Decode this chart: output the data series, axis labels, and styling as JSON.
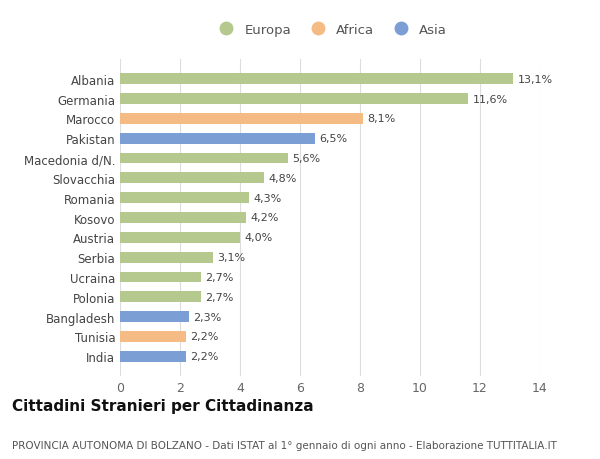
{
  "categories": [
    "Albania",
    "Germania",
    "Marocco",
    "Pakistan",
    "Macedonia d/N.",
    "Slovacchia",
    "Romania",
    "Kosovo",
    "Austria",
    "Serbia",
    "Ucraina",
    "Polonia",
    "Bangladesh",
    "Tunisia",
    "India"
  ],
  "values": [
    13.1,
    11.6,
    8.1,
    6.5,
    5.6,
    4.8,
    4.3,
    4.2,
    4.0,
    3.1,
    2.7,
    2.7,
    2.3,
    2.2,
    2.2
  ],
  "labels": [
    "13,1%",
    "11,6%",
    "8,1%",
    "6,5%",
    "5,6%",
    "4,8%",
    "4,3%",
    "4,2%",
    "4,0%",
    "3,1%",
    "2,7%",
    "2,7%",
    "2,3%",
    "2,2%",
    "2,2%"
  ],
  "continents": [
    "Europa",
    "Europa",
    "Africa",
    "Asia",
    "Europa",
    "Europa",
    "Europa",
    "Europa",
    "Europa",
    "Europa",
    "Europa",
    "Europa",
    "Asia",
    "Africa",
    "Asia"
  ],
  "colors": {
    "Europa": "#b5c98e",
    "Africa": "#f5bb85",
    "Asia": "#7b9fd4"
  },
  "xlim": [
    0,
    14
  ],
  "xticks": [
    0,
    2,
    4,
    6,
    8,
    10,
    12,
    14
  ],
  "title": "Cittadini Stranieri per Cittadinanza",
  "subtitle": "PROVINCIA AUTONOMA DI BOLZANO - Dati ISTAT al 1° gennaio di ogni anno - Elaborazione TUTTITALIA.IT",
  "bg_color": "#ffffff",
  "grid_color": "#dddddd",
  "bar_height": 0.55,
  "label_fontsize": 8,
  "title_fontsize": 11,
  "subtitle_fontsize": 7.5,
  "ytick_fontsize": 8.5,
  "xtick_fontsize": 9,
  "legend_fontsize": 9.5
}
